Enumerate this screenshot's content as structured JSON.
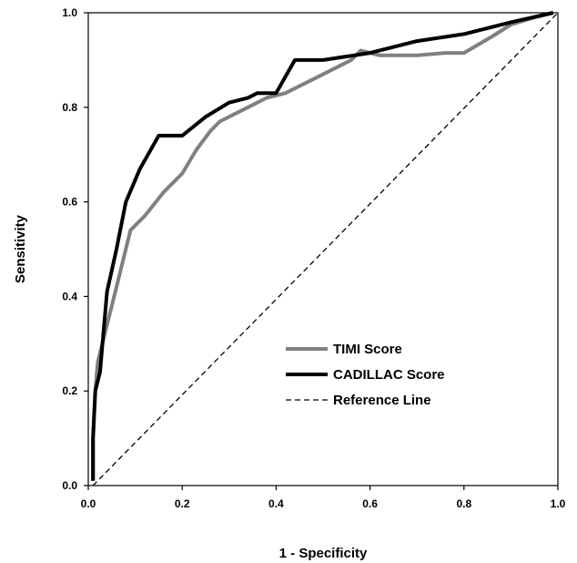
{
  "chart_data": {
    "type": "line",
    "title": "",
    "xlabel": "1 - Specificity",
    "ylabel": "Sensitivity",
    "xlim": [
      0,
      1
    ],
    "ylim": [
      0,
      1
    ],
    "xticks": [
      "0.0",
      "0.2",
      "0.4",
      "0.6",
      "0.8",
      "1.0"
    ],
    "yticks": [
      "0.0",
      "0.2",
      "0.4",
      "0.6",
      "0.8",
      "1.0"
    ],
    "grid": false,
    "legend_position": "bottom-right",
    "series": [
      {
        "name": "TIMI Score",
        "color": "#808080",
        "style": "solid",
        "x": [
          0.01,
          0.01,
          0.015,
          0.02,
          0.04,
          0.06,
          0.09,
          0.12,
          0.16,
          0.2,
          0.23,
          0.26,
          0.28,
          0.3,
          0.34,
          0.38,
          0.42,
          0.44,
          0.48,
          0.52,
          0.56,
          0.58,
          0.62,
          0.7,
          0.76,
          0.8,
          0.86,
          0.9,
          0.95,
          0.99
        ],
        "y": [
          0.01,
          0.1,
          0.2,
          0.26,
          0.34,
          0.42,
          0.54,
          0.57,
          0.62,
          0.66,
          0.71,
          0.75,
          0.77,
          0.78,
          0.8,
          0.82,
          0.83,
          0.84,
          0.86,
          0.88,
          0.9,
          0.92,
          0.91,
          0.91,
          0.915,
          0.915,
          0.95,
          0.975,
          0.99,
          1.0
        ]
      },
      {
        "name": "CADILLAC Score",
        "color": "#000000",
        "style": "solid",
        "x": [
          0.01,
          0.01,
          0.015,
          0.025,
          0.04,
          0.06,
          0.08,
          0.11,
          0.15,
          0.2,
          0.25,
          0.3,
          0.34,
          0.36,
          0.4,
          0.44,
          0.5,
          0.6,
          0.7,
          0.8,
          0.9,
          0.99
        ],
        "y": [
          0.01,
          0.1,
          0.2,
          0.24,
          0.41,
          0.5,
          0.6,
          0.67,
          0.74,
          0.74,
          0.78,
          0.81,
          0.82,
          0.83,
          0.83,
          0.9,
          0.9,
          0.915,
          0.94,
          0.955,
          0.98,
          1.0
        ]
      },
      {
        "name": "Reference Line",
        "color": "#000000",
        "style": "dashed",
        "x": [
          0.01,
          1.0
        ],
        "y": [
          0.0,
          1.0
        ]
      }
    ]
  }
}
